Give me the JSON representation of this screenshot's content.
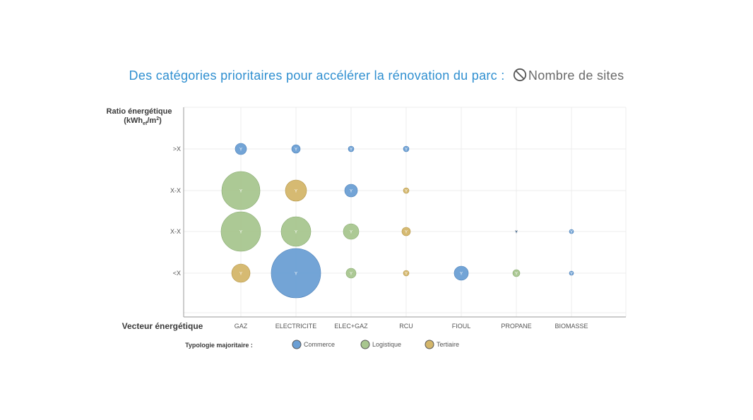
{
  "title": {
    "main": "Des catégories prioritaires pour accélérer la rénovation du parc :",
    "icon": "no-entry-icon",
    "sub": "Nombre de sites"
  },
  "chart_data": {
    "type": "scatter",
    "variant": "bubble",
    "x_categories": [
      "GAZ",
      "ELECTRICITE",
      "ELEC+GAZ",
      "RCU",
      "FIOUL",
      "PROPANE",
      "BIOMASSE"
    ],
    "y_categories": [
      "<X",
      "X-X",
      "X-X",
      ">X"
    ],
    "xlabel": "Vecteur énergétique",
    "ylabel": "Ratio énergétique",
    "ylabel_unit": {
      "base": "(kWh",
      "sub": "ef",
      "mid": "/m",
      "sup": "2",
      "end": ")"
    },
    "bubble_label": "Y",
    "grid": true,
    "legend_title": "Typologie majoritaire :",
    "legend_position": "bottom",
    "series": [
      {
        "name": "Commerce",
        "color": "#6b9fd4"
      },
      {
        "name": "Logistique",
        "color": "#a8c68f"
      },
      {
        "name": "Tertiaire",
        "color": "#d4b66a"
      }
    ],
    "points": [
      {
        "x": "GAZ",
        "y_index": 3,
        "size": 8,
        "type": "Commerce"
      },
      {
        "x": "ELECTRICITE",
        "y_index": 3,
        "size": 6,
        "type": "Commerce"
      },
      {
        "x": "ELEC+GAZ",
        "y_index": 3,
        "size": 4,
        "type": "Commerce"
      },
      {
        "x": "RCU",
        "y_index": 3,
        "size": 4,
        "type": "Commerce"
      },
      {
        "x": "GAZ",
        "y_index": 2,
        "size": 27,
        "type": "Logistique"
      },
      {
        "x": "ELECTRICITE",
        "y_index": 2,
        "size": 15,
        "type": "Tertiaire"
      },
      {
        "x": "ELEC+GAZ",
        "y_index": 2,
        "size": 9,
        "type": "Commerce"
      },
      {
        "x": "RCU",
        "y_index": 2,
        "size": 4,
        "type": "Tertiaire"
      },
      {
        "x": "GAZ",
        "y_index": 1,
        "size": 28,
        "type": "Logistique"
      },
      {
        "x": "ELECTRICITE",
        "y_index": 1,
        "size": 21,
        "type": "Logistique"
      },
      {
        "x": "ELEC+GAZ",
        "y_index": 1,
        "size": 11,
        "type": "Logistique"
      },
      {
        "x": "RCU",
        "y_index": 1,
        "size": 6,
        "type": "Tertiaire"
      },
      {
        "x": "PROPANE",
        "y_index": 1,
        "size": 1,
        "type": "Commerce"
      },
      {
        "x": "BIOMASSE",
        "y_index": 1,
        "size": 3,
        "type": "Commerce"
      },
      {
        "x": "GAZ",
        "y_index": 0,
        "size": 13,
        "type": "Tertiaire"
      },
      {
        "x": "ELECTRICITE",
        "y_index": 0,
        "size": 35,
        "type": "Commerce"
      },
      {
        "x": "ELEC+GAZ",
        "y_index": 0,
        "size": 7,
        "type": "Logistique"
      },
      {
        "x": "RCU",
        "y_index": 0,
        "size": 4,
        "type": "Tertiaire"
      },
      {
        "x": "FIOUL",
        "y_index": 0,
        "size": 10,
        "type": "Commerce"
      },
      {
        "x": "PROPANE",
        "y_index": 0,
        "size": 5,
        "type": "Logistique"
      },
      {
        "x": "BIOMASSE",
        "y_index": 0,
        "size": 3,
        "type": "Commerce"
      }
    ]
  }
}
